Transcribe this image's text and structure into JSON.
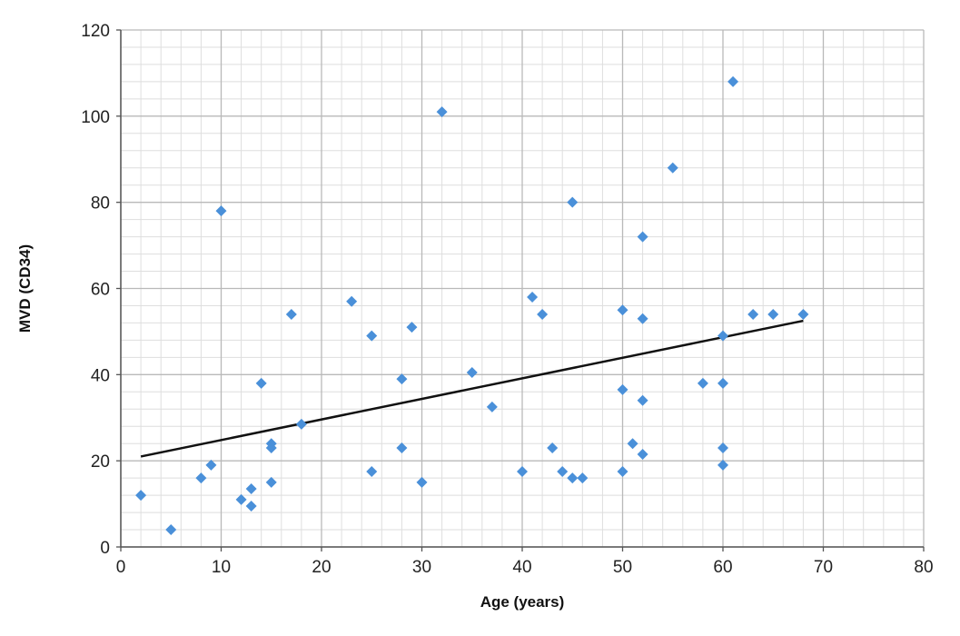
{
  "chart_data": {
    "type": "scatter",
    "title": "",
    "xlabel": "Age (years)",
    "ylabel": "MVD (CD34)",
    "xlim": [
      0,
      80
    ],
    "ylim": [
      0,
      120
    ],
    "x_ticks": [
      0,
      10,
      20,
      30,
      40,
      50,
      60,
      70,
      80
    ],
    "y_ticks": [
      0,
      20,
      40,
      60,
      80,
      100,
      120
    ],
    "x_minor_step": 2,
    "y_minor_step": 4,
    "grid": true,
    "legend": "none",
    "colors": {
      "marker": "#4a90d9",
      "trendline": "#111111",
      "grid_major": "#b9b9b9",
      "grid_minor": "#dedede"
    },
    "points": [
      {
        "x": 2,
        "y": 12
      },
      {
        "x": 5,
        "y": 4
      },
      {
        "x": 8,
        "y": 16
      },
      {
        "x": 9,
        "y": 19
      },
      {
        "x": 10,
        "y": 78
      },
      {
        "x": 12,
        "y": 11
      },
      {
        "x": 13,
        "y": 13.5
      },
      {
        "x": 13,
        "y": 9.5
      },
      {
        "x": 14,
        "y": 38
      },
      {
        "x": 15,
        "y": 24
      },
      {
        "x": 15,
        "y": 23
      },
      {
        "x": 15,
        "y": 15
      },
      {
        "x": 17,
        "y": 54
      },
      {
        "x": 18,
        "y": 28.5
      },
      {
        "x": 23,
        "y": 57
      },
      {
        "x": 25,
        "y": 49
      },
      {
        "x": 25,
        "y": 17.5
      },
      {
        "x": 28,
        "y": 39
      },
      {
        "x": 28,
        "y": 23
      },
      {
        "x": 29,
        "y": 51
      },
      {
        "x": 30,
        "y": 15
      },
      {
        "x": 32,
        "y": 101
      },
      {
        "x": 35,
        "y": 40.5
      },
      {
        "x": 37,
        "y": 32.5
      },
      {
        "x": 40,
        "y": 17.5
      },
      {
        "x": 41,
        "y": 58
      },
      {
        "x": 42,
        "y": 54
      },
      {
        "x": 43,
        "y": 23
      },
      {
        "x": 44,
        "y": 17.5
      },
      {
        "x": 45,
        "y": 80
      },
      {
        "x": 45,
        "y": 16
      },
      {
        "x": 46,
        "y": 16
      },
      {
        "x": 50,
        "y": 55
      },
      {
        "x": 50,
        "y": 36.5
      },
      {
        "x": 50,
        "y": 17.5
      },
      {
        "x": 51,
        "y": 24
      },
      {
        "x": 52,
        "y": 72
      },
      {
        "x": 52,
        "y": 53
      },
      {
        "x": 52,
        "y": 34
      },
      {
        "x": 52,
        "y": 21.5
      },
      {
        "x": 55,
        "y": 88
      },
      {
        "x": 58,
        "y": 38
      },
      {
        "x": 60,
        "y": 49
      },
      {
        "x": 60,
        "y": 38
      },
      {
        "x": 60,
        "y": 23
      },
      {
        "x": 60,
        "y": 19
      },
      {
        "x": 61,
        "y": 108
      },
      {
        "x": 63,
        "y": 54
      },
      {
        "x": 65,
        "y": 54
      },
      {
        "x": 68,
        "y": 54
      }
    ],
    "trendline": {
      "x": [
        2,
        68
      ],
      "y": [
        21,
        52.5
      ]
    }
  }
}
